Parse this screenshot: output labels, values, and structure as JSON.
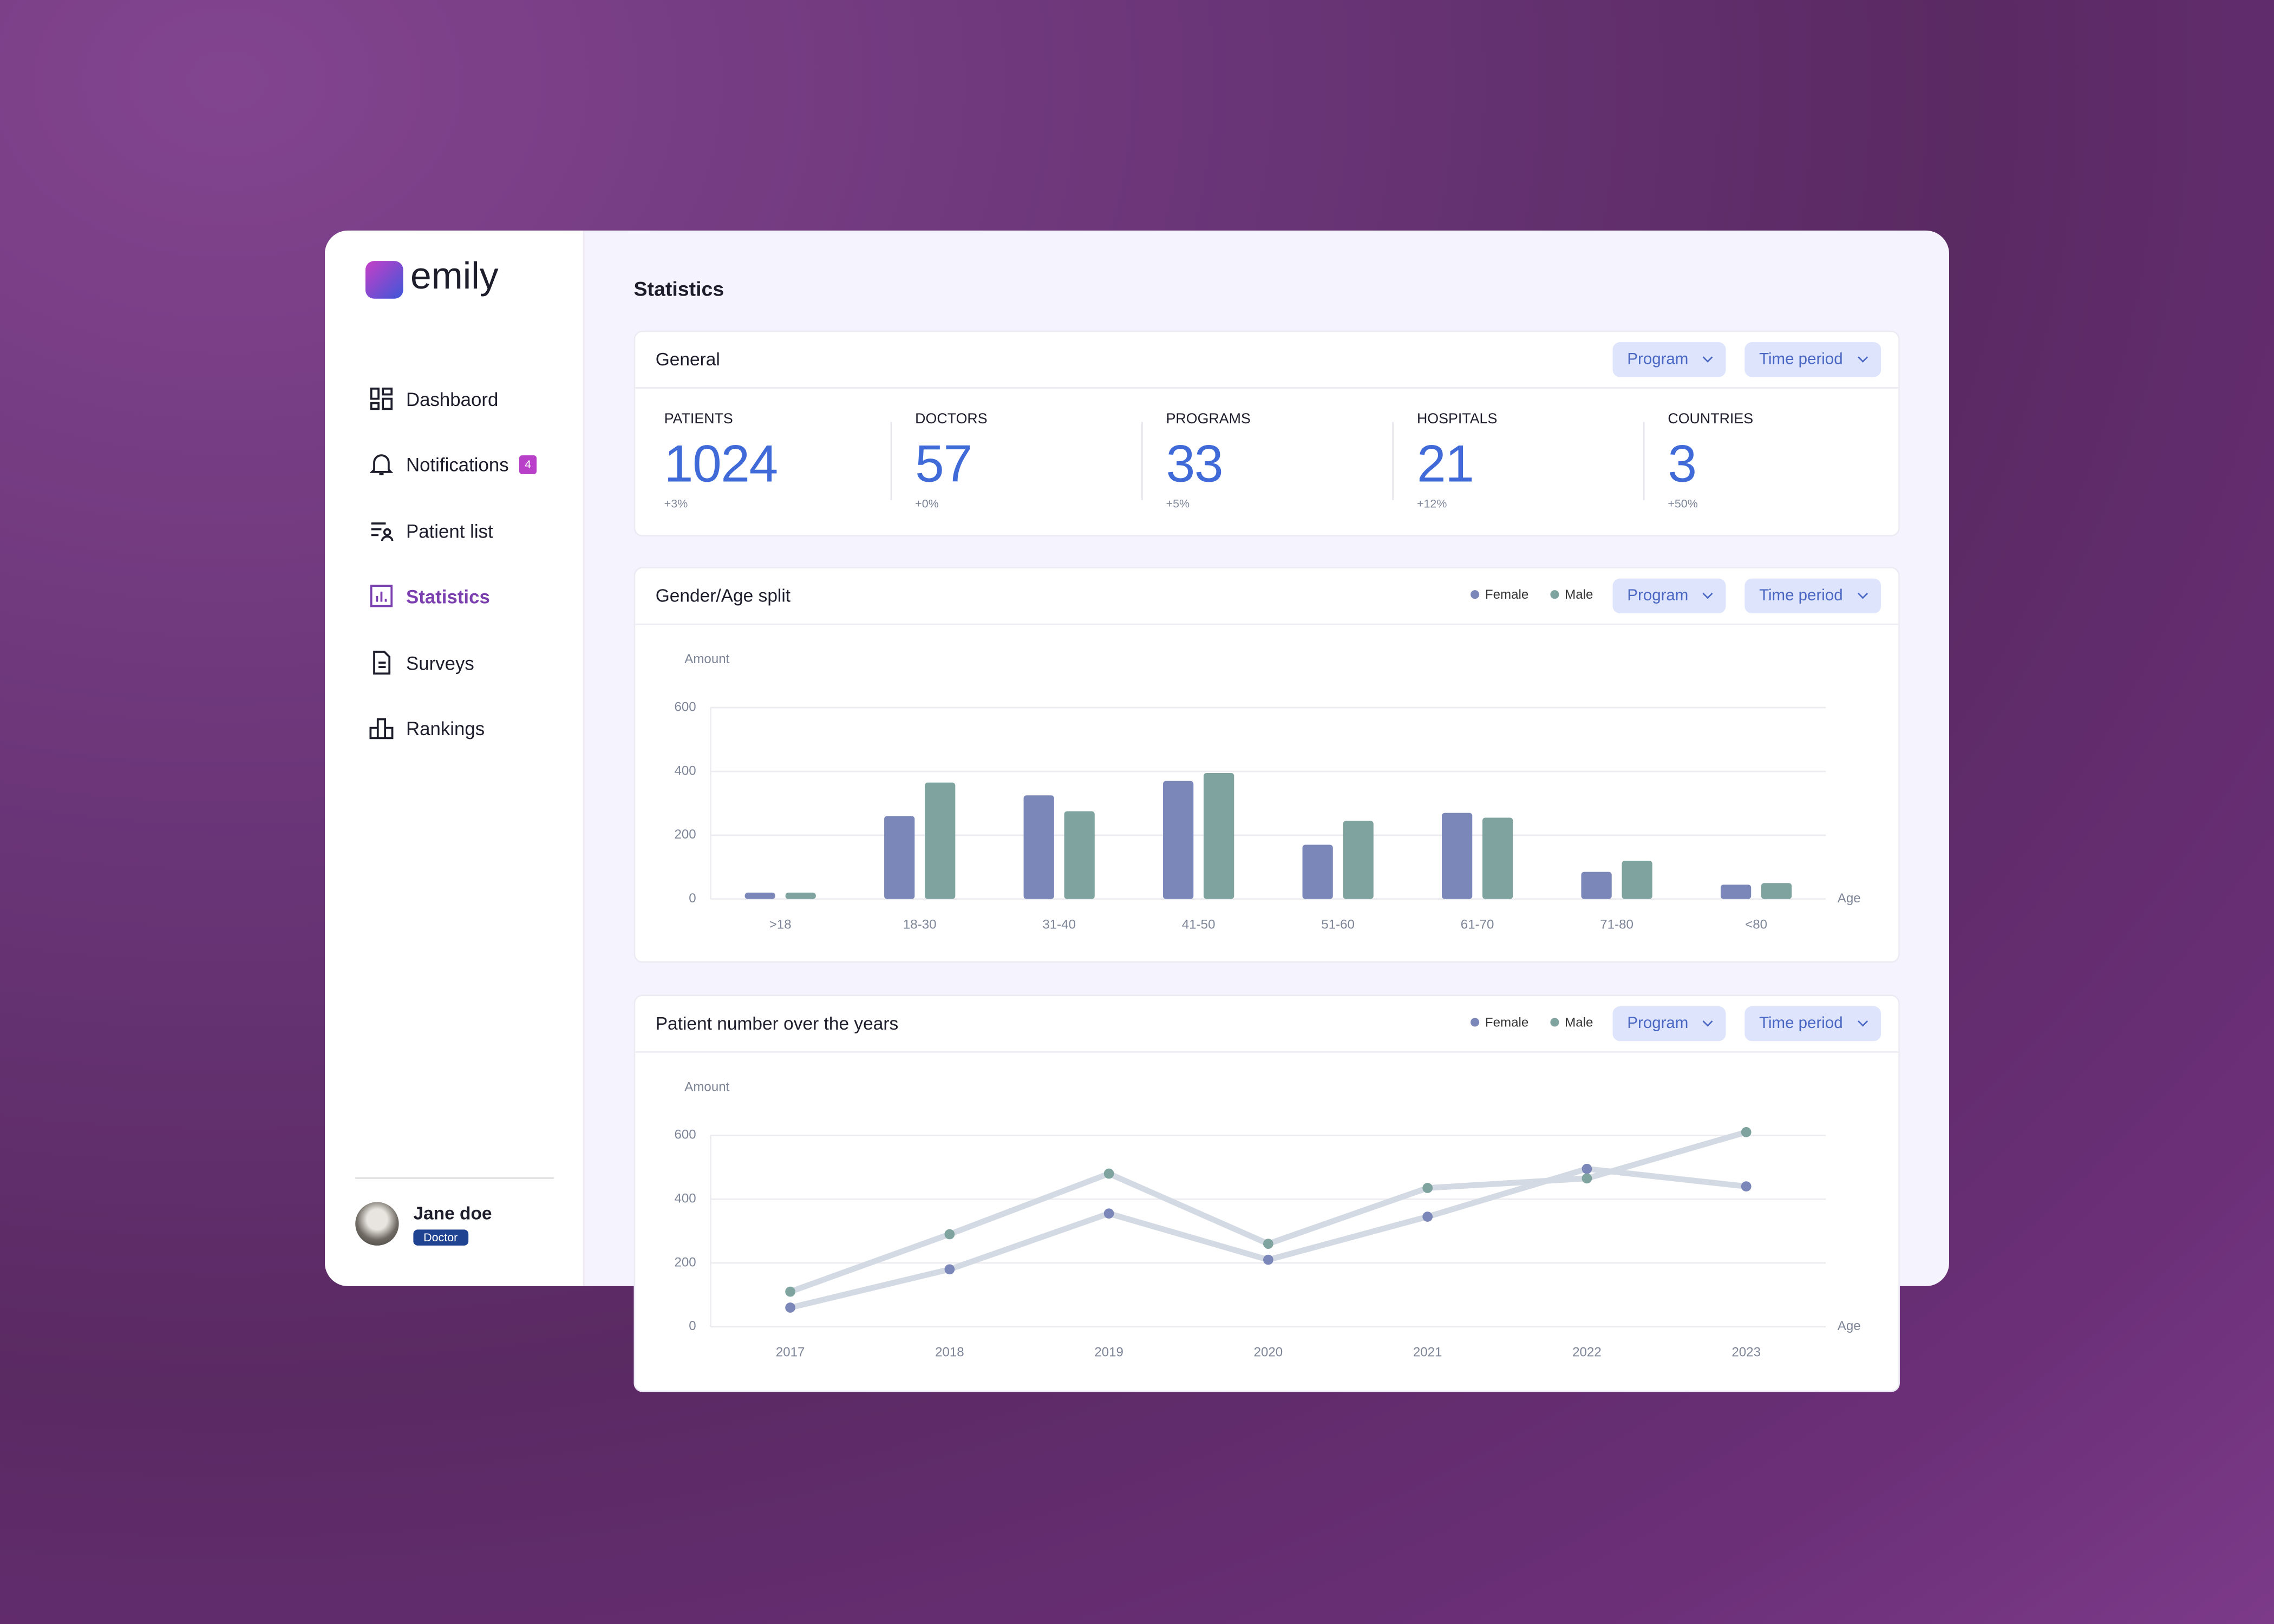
{
  "logo": "emily",
  "nav": [
    {
      "label": "Dashbaord"
    },
    {
      "label": "Notifications",
      "badge": 4
    },
    {
      "label": "Patient list"
    },
    {
      "label": "Statistics",
      "active": true
    },
    {
      "label": "Surveys"
    },
    {
      "label": "Rankings"
    }
  ],
  "user": {
    "name": "Jane doe",
    "role": "Doctor"
  },
  "page_title": "Statistics",
  "general": {
    "title": "General",
    "filters": [
      "Program",
      "Time period"
    ],
    "stats": [
      {
        "label": "PATIENTS",
        "value": 1024,
        "change": "+3%"
      },
      {
        "label": "DOCTORS",
        "value": 57,
        "change": "+0%"
      },
      {
        "label": "PROGRAMS",
        "value": 33,
        "change": "+5%"
      },
      {
        "label": "HOSPITALS",
        "value": 21,
        "change": "+12%"
      },
      {
        "label": "COUNTRIES",
        "value": 3,
        "change": "+50%"
      }
    ]
  },
  "chart_data": [
    {
      "type": "bar",
      "title": "Gender/Age split",
      "filters": [
        "Program",
        "Time period"
      ],
      "y_label": "Amount",
      "x_label": "Age",
      "categories": [
        ">18",
        "18-30",
        "31-40",
        "41-50",
        "51-60",
        "61-70",
        "71-80",
        "<80"
      ],
      "series": [
        {
          "name": "Female",
          "color": "#7b87b8",
          "values": [
            20,
            260,
            325,
            370,
            170,
            270,
            85,
            45
          ]
        },
        {
          "name": "Male",
          "color": "#7fa39e",
          "values": [
            20,
            365,
            275,
            395,
            245,
            255,
            120,
            50
          ]
        }
      ],
      "ylim": [
        0,
        600
      ],
      "yticks": [
        0,
        200,
        400,
        600
      ],
      "grid": true
    },
    {
      "type": "line",
      "title": "Patient number over the years",
      "filters": [
        "Program",
        "Time period"
      ],
      "y_label": "Amount",
      "x_label": "Age",
      "categories": [
        "2017",
        "2018",
        "2019",
        "2020",
        "2021",
        "2022",
        "2023"
      ],
      "series": [
        {
          "name": "Female",
          "color": "#7b87b8",
          "values": [
            60,
            180,
            355,
            210,
            345,
            495,
            440
          ]
        },
        {
          "name": "Male",
          "color": "#7fa39e",
          "values": [
            110,
            290,
            480,
            260,
            435,
            465,
            610
          ]
        }
      ],
      "line_color": "#d3dae3",
      "ylim": [
        0,
        600
      ],
      "yticks": [
        0,
        200,
        400,
        600
      ],
      "grid": true
    }
  ]
}
